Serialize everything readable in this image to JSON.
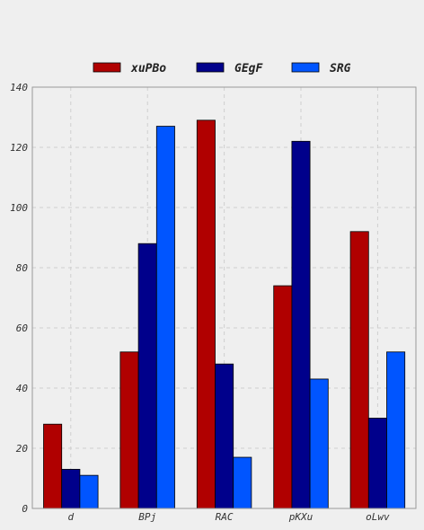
{
  "chart_data": {
    "type": "bar",
    "title": "",
    "xlabel": "",
    "ylabel": "",
    "categories": [
      "d",
      "BPj",
      "RAC",
      "pKXu",
      "oLwv"
    ],
    "series": [
      {
        "name": "xuPBo",
        "color": "#b00000",
        "values": [
          28,
          52,
          129,
          74,
          92
        ]
      },
      {
        "name": "GEgF",
        "color": "#00008b",
        "values": [
          13,
          88,
          48,
          122,
          30
        ]
      },
      {
        "name": "SRG",
        "color": "#0055ff",
        "values": [
          11,
          127,
          17,
          43,
          52
        ]
      }
    ],
    "ylim": [
      0,
      140
    ],
    "yticks": [
      "0",
      "20",
      "40",
      "60",
      "80",
      "100",
      "120",
      "140"
    ],
    "grid": true,
    "legend_position": "top-center",
    "background_color": "#efefef",
    "grid_color": "#cfcfcf"
  }
}
